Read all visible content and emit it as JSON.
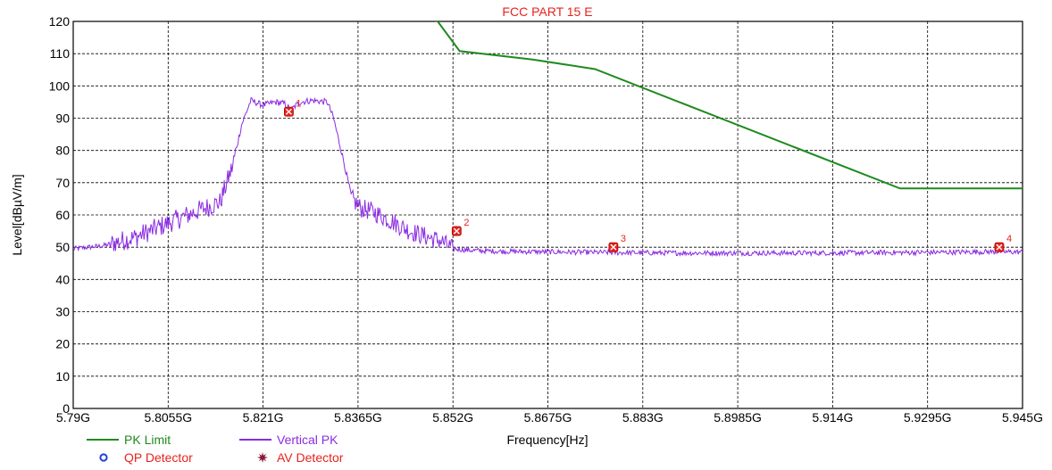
{
  "chart_data": {
    "type": "line",
    "title": "FCC PART 15 E",
    "xlabel": "Frequency[Hz]",
    "ylabel": "Level[dBµV/m]",
    "xlim": [
      5.79,
      5.945
    ],
    "ylim": [
      0,
      120
    ],
    "x_ticks": [
      5.79,
      5.8055,
      5.821,
      5.8365,
      5.852,
      5.8675,
      5.883,
      5.8985,
      5.914,
      5.9295,
      5.945
    ],
    "x_tick_labels": [
      "5.79G",
      "5.8055G",
      "5.821G",
      "5.8365G",
      "5.852G",
      "5.8675G",
      "5.883G",
      "5.8985G",
      "5.914G",
      "5.9295G",
      "5.945G"
    ],
    "y_ticks": [
      0,
      10,
      20,
      30,
      40,
      50,
      60,
      70,
      80,
      90,
      100,
      110,
      120
    ],
    "y_tick_labels": [
      "0",
      "10",
      "20",
      "30",
      "40",
      "50",
      "60",
      "70",
      "80",
      "90",
      "100",
      "110",
      "120"
    ],
    "grid": true,
    "legend_position": "bottom-left",
    "series": [
      {
        "name": "PK Limit",
        "color": "#1f8a1f",
        "x": [
          5.8464,
          5.8495,
          5.8531,
          5.865,
          5.8752,
          5.925,
          5.945
        ],
        "y": [
          122.2,
          120,
          110.8,
          108.2,
          105.2,
          68.2,
          68.2
        ]
      },
      {
        "name": "Vertical PK",
        "color": "#8a2be2",
        "x": [
          5.79,
          5.795,
          5.8,
          5.805,
          5.81,
          5.814,
          5.816,
          5.8175,
          5.819,
          5.821,
          5.823,
          5.8245,
          5.8255,
          5.827,
          5.829,
          5.8315,
          5.8325,
          5.834,
          5.8355,
          5.837,
          5.839,
          5.842,
          5.845,
          5.848,
          5.85,
          5.852,
          5.855,
          5.86,
          5.87,
          5.88,
          5.89,
          5.9,
          5.91,
          5.92,
          5.93,
          5.94,
          5.945
        ],
        "y": [
          49.5,
          50.5,
          53,
          57,
          61,
          64,
          75,
          88,
          95.5,
          94,
          95,
          94.5,
          92.5,
          95,
          95.5,
          95,
          90,
          78,
          65,
          62,
          61,
          58,
          55,
          53,
          52,
          49.5,
          49,
          48.7,
          48.5,
          48.3,
          48.2,
          48.2,
          48.2,
          48.3,
          48.4,
          48.6,
          48.5
        ]
      },
      {
        "name": "QP Detector",
        "color": "#1f3fd6",
        "x": [],
        "y": []
      },
      {
        "name": "AV Detector",
        "color": "#8b1a3a",
        "x": [],
        "y": []
      }
    ],
    "markers": [
      {
        "label": "1",
        "x": 5.8252,
        "y": 92
      },
      {
        "label": "2",
        "x": 5.8526,
        "y": 55
      },
      {
        "label": "3",
        "x": 5.8782,
        "y": 50
      },
      {
        "label": "4",
        "x": 5.9412,
        "y": 50
      }
    ]
  }
}
